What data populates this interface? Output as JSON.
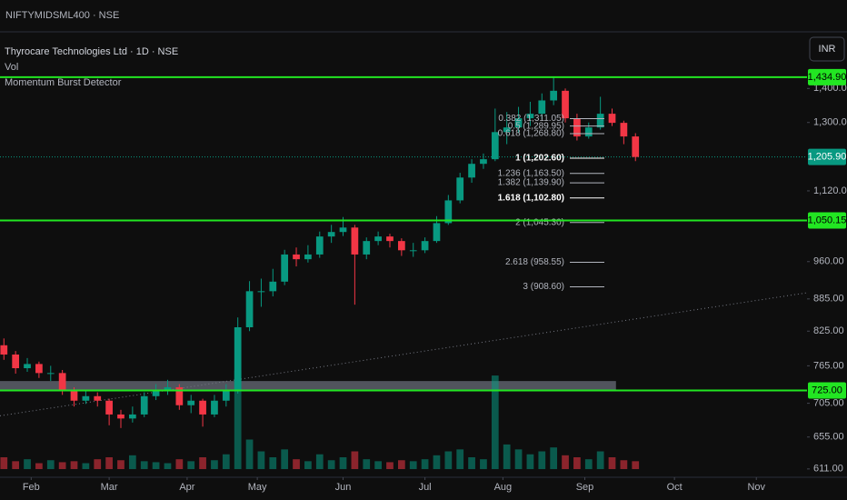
{
  "chart_data": {
    "type": "candlestick",
    "top_symbol": "NIFTYMIDSML400 · NSE",
    "title": "Thyrocare Technologies Ltd · 1D · NSE",
    "indicators": [
      "Vol",
      "Momentum Burst Detector"
    ],
    "currency": "INR",
    "log_scale": true,
    "up_color": "#089981",
    "down_color": "#f23645",
    "level_color": "#22e622",
    "xlim": [
      -1,
      206
    ],
    "ylim": [
      600,
      1584
    ],
    "volume_lim": [
      0,
      120
    ],
    "xticks": [
      {
        "value": 7,
        "label": "Feb"
      },
      {
        "value": 27,
        "label": "Mar"
      },
      {
        "value": 47,
        "label": "Apr"
      },
      {
        "value": 65,
        "label": "May"
      },
      {
        "value": 87,
        "label": "Jun"
      },
      {
        "value": 108,
        "label": "Jul"
      },
      {
        "value": 128,
        "label": "Aug"
      },
      {
        "value": 149,
        "label": "Sep"
      },
      {
        "value": 172,
        "label": "Oct"
      },
      {
        "value": 193,
        "label": "Nov"
      }
    ],
    "yticks": [
      {
        "value": 1400,
        "label": "1,400.00"
      },
      {
        "value": 1300,
        "label": "1,300.00"
      },
      {
        "value": 1120,
        "label": "1,120.00"
      },
      {
        "value": 960,
        "label": "960.00"
      },
      {
        "value": 885,
        "label": "885.00"
      },
      {
        "value": 825,
        "label": "825.00"
      },
      {
        "value": 765,
        "label": "765.00"
      },
      {
        "value": 705,
        "label": "705.00"
      },
      {
        "value": 655,
        "label": "655.00"
      },
      {
        "value": 611,
        "label": "611.00"
      }
    ],
    "x": [
      0,
      3,
      6,
      9,
      12,
      15,
      18,
      21,
      24,
      27,
      30,
      33,
      36,
      39,
      42,
      45,
      48,
      51,
      54,
      57,
      60,
      63,
      66,
      69,
      72,
      75,
      78,
      81,
      84,
      87,
      90,
      93,
      96,
      99,
      102,
      105,
      108,
      111,
      114,
      117,
      120,
      123,
      126,
      129,
      132,
      135,
      138,
      141,
      144,
      147,
      150,
      153,
      156,
      159,
      162
    ],
    "open": [
      800,
      784,
      761,
      768,
      753,
      753,
      724,
      709,
      716,
      709,
      688,
      682,
      688,
      716,
      724,
      730,
      702,
      709,
      688,
      709,
      724,
      832,
      900,
      900,
      919,
      975,
      965,
      975,
      1014,
      1024,
      1034,
      975,
      1004,
      1014,
      1004,
      984,
      984,
      1004,
      1044,
      1097,
      1153,
      1188,
      1200,
      1273,
      1286,
      1312,
      1325,
      1364,
      1393,
      1312,
      1261,
      1286,
      1325,
      1299,
      1261
    ],
    "high": [
      812,
      790,
      778,
      772,
      765,
      758,
      730,
      725,
      722,
      712,
      695,
      700,
      722,
      735,
      742,
      735,
      718,
      712,
      718,
      735,
      850,
      920,
      925,
      945,
      985,
      990,
      995,
      1025,
      1040,
      1058,
      1040,
      1012,
      1025,
      1020,
      1010,
      1000,
      1012,
      1060,
      1110,
      1165,
      1200,
      1215,
      1340,
      1330,
      1345,
      1360,
      1385,
      1434.9,
      1400,
      1325,
      1300,
      1375,
      1340,
      1305,
      1270
    ],
    "low": [
      775,
      752,
      755,
      745,
      740,
      718,
      700,
      704,
      700,
      672,
      668,
      676,
      684,
      710,
      718,
      695,
      690,
      670,
      684,
      700,
      720,
      825,
      870,
      890,
      912,
      950,
      958,
      968,
      1000,
      1015,
      874,
      965,
      995,
      990,
      972,
      970,
      978,
      1000,
      1040,
      1090,
      1140,
      1175,
      1195,
      1240,
      1270,
      1290,
      1310,
      1350,
      1300,
      1250,
      1255,
      1280,
      1290,
      1240,
      1195
    ],
    "close": [
      784,
      761,
      768,
      753,
      753,
      724,
      709,
      716,
      709,
      688,
      682,
      688,
      716,
      724,
      730,
      702,
      709,
      688,
      709,
      724,
      832,
      900,
      900,
      919,
      975,
      965,
      975,
      1014,
      1024,
      1034,
      975,
      1004,
      1014,
      1004,
      984,
      984,
      1004,
      1044,
      1097,
      1153,
      1188,
      1200,
      1273,
      1286,
      1312,
      1325,
      1364,
      1393,
      1312,
      1261,
      1286,
      1325,
      1299,
      1261,
      1205.9
    ],
    "volume": [
      12,
      8,
      10,
      6,
      9,
      7,
      8,
      6,
      10,
      12,
      9,
      14,
      8,
      7,
      6,
      10,
      8,
      12,
      9,
      15,
      100,
      30,
      18,
      12,
      20,
      10,
      8,
      15,
      9,
      12,
      18,
      10,
      8,
      7,
      9,
      8,
      10,
      14,
      18,
      20,
      12,
      10,
      95,
      25,
      20,
      15,
      18,
      22,
      14,
      12,
      10,
      18,
      12,
      9,
      8
    ],
    "levels": [
      {
        "value": 1434.9,
        "label": "1,434.90"
      },
      {
        "value": 1050.15,
        "label": "1,050.15"
      },
      {
        "value": 725,
        "label": "725.00"
      }
    ],
    "last_price": {
      "value": 1205.9,
      "label": "1,205.90"
    },
    "fib_levels": [
      {
        "value": 1311.05,
        "label": "0.382 (1,311.05)"
      },
      {
        "value": 1289.95,
        "label": "0.5 (1,289.95)"
      },
      {
        "value": 1268.8,
        "label": "0.618 (1,268.80)"
      },
      {
        "value": 1202.6,
        "label": "1 (1,202.60)",
        "bold": true
      },
      {
        "value": 1163.5,
        "label": "1.236 (1,163.50)"
      },
      {
        "value": 1139.9,
        "label": "1.382 (1,139.90)"
      },
      {
        "value": 1102.8,
        "label": "1.618 (1,102.80)",
        "bold": true
      },
      {
        "value": 1045.3,
        "label": "2 (1,045.30)"
      },
      {
        "value": 958.55,
        "label": "2.618 (958.55)"
      },
      {
        "value": 908.6,
        "label": "3 (908.60)"
      }
    ],
    "zone": {
      "low": 725,
      "high": 740,
      "x_end": 157
    },
    "trendline": {
      "x": [
        -1,
        206
      ],
      "values": [
        686,
        897
      ]
    }
  }
}
